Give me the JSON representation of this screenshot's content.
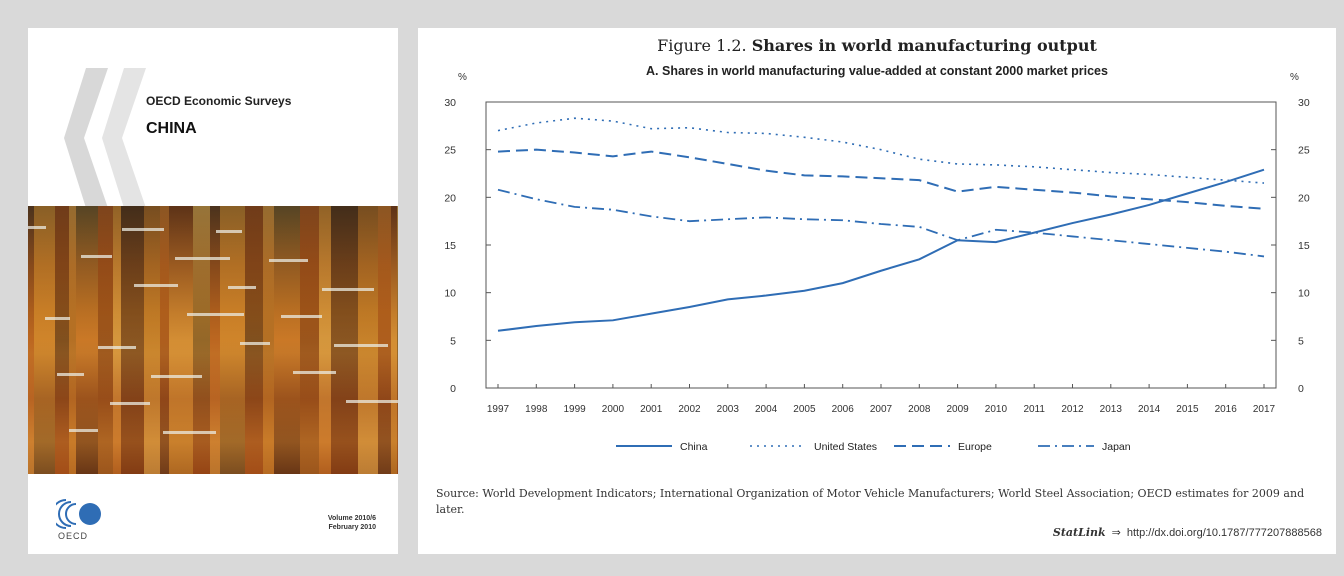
{
  "cover": {
    "series": "OECD Economic Surveys",
    "title": "CHINA",
    "logo_text": "OECD",
    "volume": "Volume 2010/6",
    "date": "February 2010"
  },
  "figure": {
    "title_prefix": "Figure 1.2.",
    "title_bold": "Shares in world manufacturing output",
    "unit_left": "%",
    "unit_right": "%",
    "source": "Source: World Development Indicators; International Organization of Motor Vehicle Manufacturers; World Steel Association; OECD estimates for 2009 and later.",
    "statlink_label": "StatLink",
    "statlink_url": "http://dx.doi.org/10.1787/777207888568"
  },
  "colors": {
    "series": "#2f6db5",
    "background": "#d9d9d9"
  },
  "chart_data": {
    "type": "line",
    "title": "A. Shares in world manufacturing value-added at constant 2000 market prices",
    "xlabel": "",
    "ylabel": "%",
    "ylim": [
      0,
      30
    ],
    "yticks": [
      0,
      5,
      10,
      15,
      20,
      25,
      30
    ],
    "grid": false,
    "legend_position": "bottom",
    "x": [
      "1997",
      "1998",
      "1999",
      "2000",
      "2001",
      "2002",
      "2003",
      "2004",
      "2005",
      "2006",
      "2007",
      "2008",
      "2009",
      "2010",
      "2011",
      "2012",
      "2013",
      "2014",
      "2015",
      "2016",
      "2017"
    ],
    "series": [
      {
        "name": "China",
        "style": "solid",
        "values": [
          6.0,
          6.5,
          6.9,
          7.1,
          7.8,
          8.5,
          9.3,
          9.7,
          10.2,
          11.0,
          12.3,
          13.5,
          15.5,
          15.3,
          16.3,
          17.3,
          18.2,
          19.2,
          20.4,
          21.6,
          22.9
        ]
      },
      {
        "name": "United States",
        "style": "dotted",
        "values": [
          27.0,
          27.8,
          28.3,
          28.0,
          27.2,
          27.3,
          26.8,
          26.7,
          26.3,
          25.8,
          25.0,
          24.0,
          23.5,
          23.4,
          23.2,
          22.9,
          22.6,
          22.4,
          22.1,
          21.8,
          21.5
        ]
      },
      {
        "name": "Europe",
        "style": "dashed",
        "values": [
          24.8,
          25.0,
          24.7,
          24.3,
          24.8,
          24.2,
          23.5,
          22.8,
          22.3,
          22.2,
          22.0,
          21.8,
          20.6,
          21.1,
          20.8,
          20.5,
          20.1,
          19.8,
          19.5,
          19.1,
          18.8
        ]
      },
      {
        "name": "Japan",
        "style": "dashdot",
        "values": [
          20.8,
          19.8,
          19.0,
          18.7,
          18.0,
          17.5,
          17.7,
          17.9,
          17.7,
          17.6,
          17.2,
          16.9,
          15.5,
          16.6,
          16.3,
          15.9,
          15.5,
          15.1,
          14.7,
          14.3,
          13.8
        ]
      }
    ]
  }
}
